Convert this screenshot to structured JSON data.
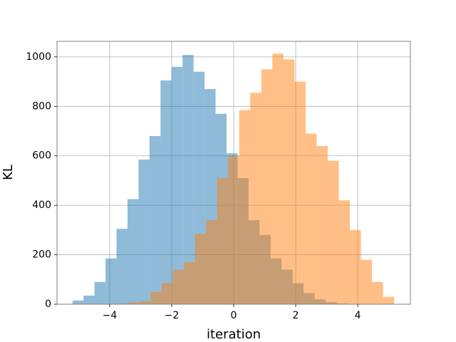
{
  "chart_data": {
    "type": "histogram",
    "xlabel": "iteration",
    "ylabel": "KL",
    "xlim": [
      -5.7,
      5.7
    ],
    "ylim": [
      0,
      1063
    ],
    "xticks": [
      {
        "value": -4,
        "label": "−4"
      },
      {
        "value": -2,
        "label": "−2"
      },
      0,
      2,
      4
    ],
    "yticks": [
      0,
      200,
      400,
      600,
      800,
      1000
    ],
    "grid": true,
    "opacity": 0.5,
    "series": [
      {
        "color": "#1f77b4",
        "bins": [
          -5.2,
          -4.845,
          -4.49,
          -4.135,
          -3.78,
          -3.425,
          -3.07,
          -2.715,
          -2.36,
          -2.005,
          -1.65,
          -1.295,
          -0.94,
          -0.585,
          -0.23,
          0.125,
          0.48,
          0.835,
          1.19,
          1.545,
          1.9,
          2.255,
          2.61,
          2.965,
          3.32,
          3.675
        ],
        "values": [
          15,
          35,
          90,
          185,
          305,
          425,
          585,
          680,
          905,
          960,
          1008,
          940,
          870,
          770,
          610,
          510,
          340,
          280,
          185,
          140,
          85,
          45,
          20,
          8,
          3
        ]
      },
      {
        "color": "#ff7f0e",
        "bins": [
          -3.75,
          -3.393,
          -3.036,
          -2.679,
          -2.322,
          -1.965,
          -1.608,
          -1.251,
          -0.894,
          -0.537,
          -0.18,
          0.177,
          0.534,
          0.891,
          1.248,
          1.605,
          1.962,
          2.319,
          2.676,
          3.033,
          3.39,
          3.747,
          4.104,
          4.461,
          4.818,
          5.175
        ],
        "values": [
          3,
          8,
          12,
          50,
          85,
          140,
          170,
          285,
          340,
          510,
          600,
          785,
          855,
          950,
          1013,
          990,
          900,
          690,
          640,
          580,
          420,
          300,
          180,
          90,
          30
        ]
      }
    ]
  }
}
